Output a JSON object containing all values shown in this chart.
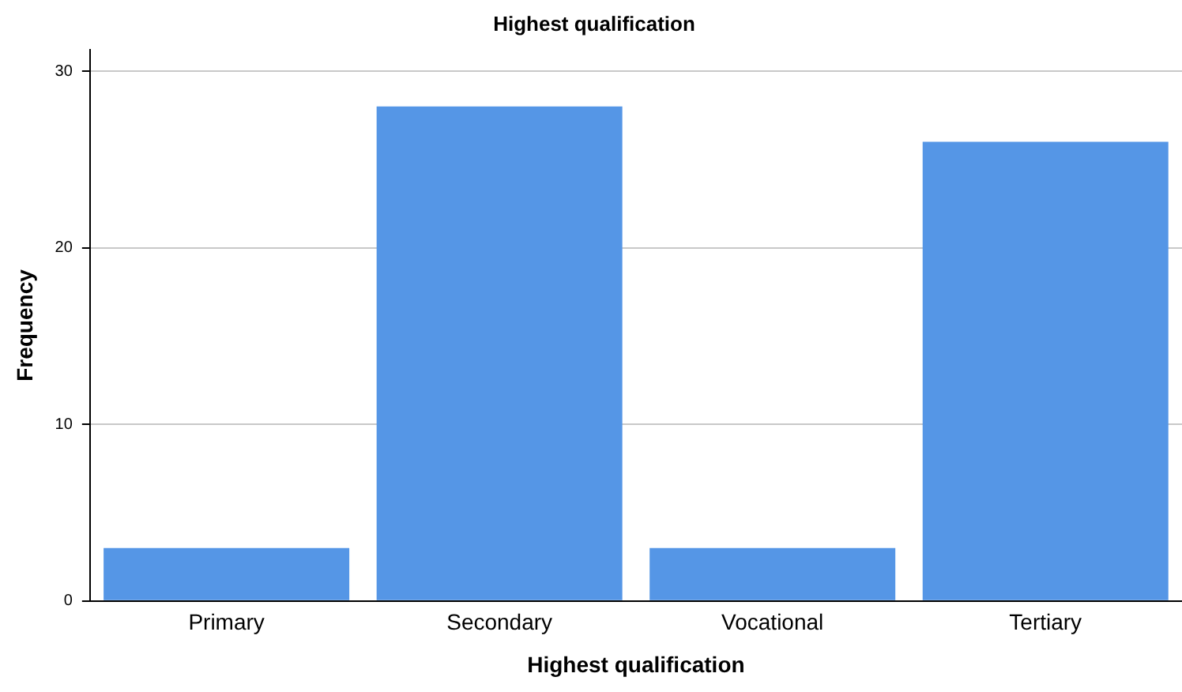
{
  "chart_data": {
    "type": "bar",
    "title": "Highest qualification",
    "xlabel": "Highest qualification",
    "ylabel": "Frequency",
    "categories": [
      "Primary",
      "Secondary",
      "Vocational",
      "Tertiary"
    ],
    "values": [
      3,
      28,
      3,
      26
    ],
    "color": "#5596e6",
    "ylim": [
      0,
      31.2
    ],
    "yticks": [
      0,
      10,
      20,
      30
    ],
    "grid": "y"
  }
}
